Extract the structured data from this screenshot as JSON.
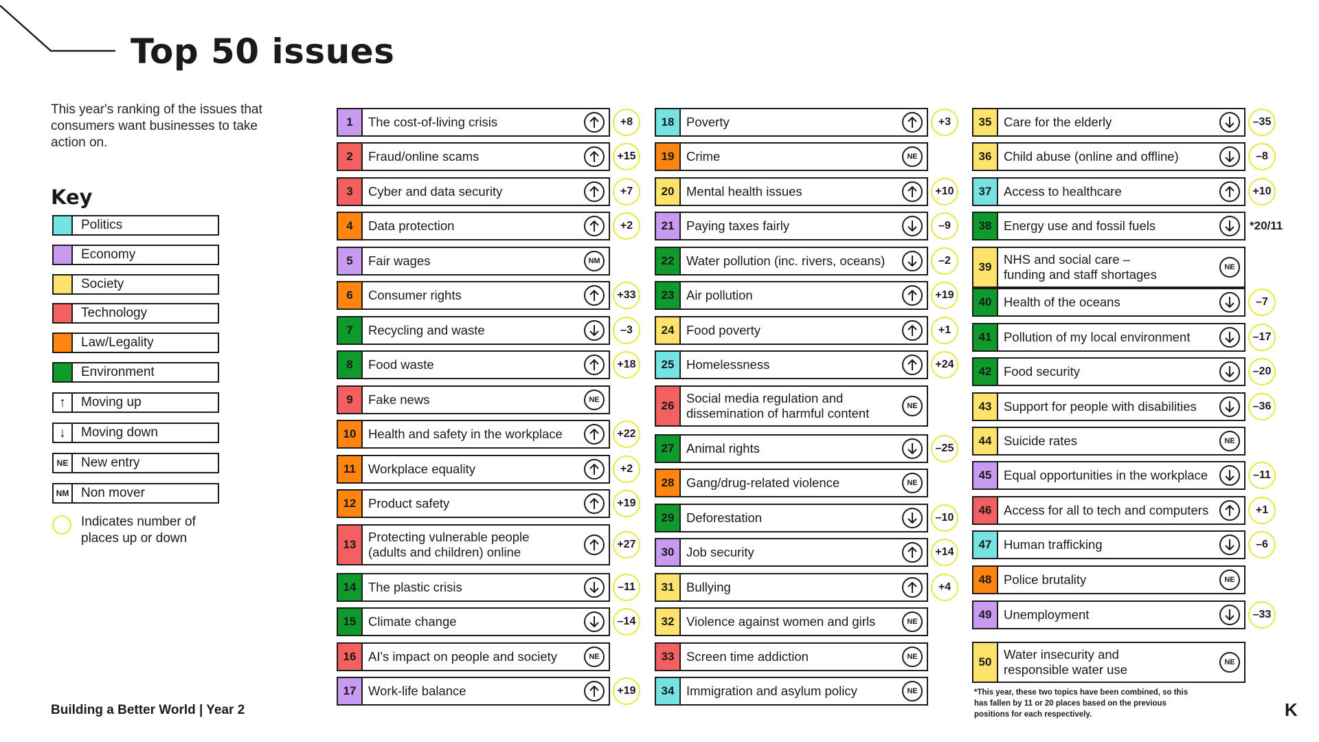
{
  "title": "Top 50 issues",
  "intro": "This year's ranking of the issues that consumers want businesses to take action on.",
  "key": {
    "title": "Key",
    "categories": [
      {
        "label": "Politics",
        "color": "#76e3e3"
      },
      {
        "label": "Economy",
        "color": "#c89af0"
      },
      {
        "label": "Society",
        "color": "#fde26b"
      },
      {
        "label": "Technology",
        "color": "#f46060"
      },
      {
        "label": "Law/Legality",
        "color": "#ff8410"
      },
      {
        "label": "Environment",
        "color": "#0f9a2c"
      }
    ],
    "symbols": [
      {
        "icon": "arrow-up-icon",
        "symbol": "↑",
        "label": "Moving up"
      },
      {
        "icon": "arrow-down-icon",
        "symbol": "↓",
        "label": "Moving down"
      },
      {
        "icon": "new-entry-icon",
        "symbol": "NE",
        "label": "New entry"
      },
      {
        "icon": "non-mover-icon",
        "symbol": "NM",
        "label": "Non mover"
      }
    ],
    "circle_label": "Indicates number of places up or down",
    "circle_color": "#e6ea3c"
  },
  "colors": {
    "Politics": "#76e3e3",
    "Economy": "#c89af0",
    "Society": "#fde26b",
    "Technology": "#f46060",
    "Law": "#ff8410",
    "Environment": "#0f9a2c"
  },
  "issues": [
    {
      "rank": "1",
      "label": "The cost-of-living crisis",
      "category": "Economy",
      "status": "up",
      "change": "+8"
    },
    {
      "rank": "2",
      "label": "Fraud/online scams",
      "category": "Technology",
      "status": "up",
      "change": "+15"
    },
    {
      "rank": "3",
      "label": "Cyber and data security",
      "category": "Technology",
      "status": "up",
      "change": "+7"
    },
    {
      "rank": "4",
      "label": "Data protection",
      "category": "Law",
      "status": "up",
      "change": "+2"
    },
    {
      "rank": "5",
      "label": "Fair wages",
      "category": "Economy",
      "status": "NM",
      "change": ""
    },
    {
      "rank": "6",
      "label": "Consumer rights",
      "category": "Law",
      "status": "up",
      "change": "+33"
    },
    {
      "rank": "7",
      "label": "Recycling and waste",
      "category": "Environment",
      "status": "down",
      "change": "–3"
    },
    {
      "rank": "8",
      "label": "Food waste",
      "category": "Environment",
      "status": "up",
      "change": "+18"
    },
    {
      "rank": "9",
      "label": "Fake news",
      "category": "Technology",
      "status": "NE",
      "change": ""
    },
    {
      "rank": "10",
      "label": "Health and safety in the workplace",
      "category": "Law",
      "status": "up",
      "change": "+22"
    },
    {
      "rank": "11",
      "label": "Workplace equality",
      "category": "Law",
      "status": "up",
      "change": "+2"
    },
    {
      "rank": "12",
      "label": "Product safety",
      "category": "Law",
      "status": "up",
      "change": "+19"
    },
    {
      "rank": "13",
      "label": "Protecting vulnerable people (adults and children) online",
      "label_line1": "Protecting vulnerable people",
      "label_line2": "(adults and children) online",
      "category": "Technology",
      "status": "up",
      "change": "+27"
    },
    {
      "rank": "14",
      "label": "The plastic crisis",
      "category": "Environment",
      "status": "down",
      "change": "–11"
    },
    {
      "rank": "15",
      "label": "Climate change",
      "category": "Environment",
      "status": "down",
      "change": "–14"
    },
    {
      "rank": "16",
      "label": "AI's impact on people and society",
      "category": "Technology",
      "status": "NE",
      "change": ""
    },
    {
      "rank": "17",
      "label": "Work-life balance",
      "category": "Economy",
      "status": "up",
      "change": "+19"
    },
    {
      "rank": "18",
      "label": "Poverty",
      "category": "Politics",
      "status": "up",
      "change": "+3"
    },
    {
      "rank": "19",
      "label": "Crime",
      "category": "Law",
      "status": "NE",
      "change": ""
    },
    {
      "rank": "20",
      "label": "Mental health issues",
      "category": "Society",
      "status": "up",
      "change": "+10"
    },
    {
      "rank": "21",
      "label": "Paying taxes fairly",
      "category": "Economy",
      "status": "down",
      "change": "–9"
    },
    {
      "rank": "22",
      "label": "Water pollution (inc. rivers, oceans)",
      "category": "Environment",
      "status": "down",
      "change": "–2"
    },
    {
      "rank": "23",
      "label": "Air pollution",
      "category": "Environment",
      "status": "up",
      "change": "+19"
    },
    {
      "rank": "24",
      "label": "Food poverty",
      "category": "Society",
      "status": "up",
      "change": "+1"
    },
    {
      "rank": "25",
      "label": "Homelessness",
      "category": "Politics",
      "status": "up",
      "change": "+24"
    },
    {
      "rank": "26",
      "label": "Social media regulation and dissemination of harmful content",
      "label_line1": "Social media regulation and",
      "label_line2": "dissemination of harmful content",
      "category": "Technology",
      "status": "NE",
      "change": ""
    },
    {
      "rank": "27",
      "label": "Animal rights",
      "category": "Environment",
      "status": "down",
      "change": "–25"
    },
    {
      "rank": "28",
      "label": "Gang/drug-related violence",
      "category": "Law",
      "status": "NE",
      "change": ""
    },
    {
      "rank": "29",
      "label": "Deforestation",
      "category": "Environment",
      "status": "down",
      "change": "–10"
    },
    {
      "rank": "30",
      "label": "Job security",
      "category": "Economy",
      "status": "up",
      "change": "+14"
    },
    {
      "rank": "31",
      "label": "Bullying",
      "category": "Society",
      "status": "up",
      "change": "+4"
    },
    {
      "rank": "32",
      "label": "Violence against women and girls",
      "category": "Society",
      "status": "NE",
      "change": ""
    },
    {
      "rank": "33",
      "label": "Screen time addiction",
      "category": "Technology",
      "status": "NE",
      "change": ""
    },
    {
      "rank": "34",
      "label": "Immigration and asylum policy",
      "category": "Politics",
      "status": "NE",
      "change": ""
    },
    {
      "rank": "35",
      "label": "Care for the elderly",
      "category": "Society",
      "status": "down",
      "change": "–35"
    },
    {
      "rank": "36",
      "label": "Child abuse (online and offline)",
      "category": "Society",
      "status": "down",
      "change": "–8"
    },
    {
      "rank": "37",
      "label": "Access to healthcare",
      "category": "Politics",
      "status": "up",
      "change": "+10"
    },
    {
      "rank": "38",
      "label": "Energy use and fossil fuels",
      "category": "Environment",
      "status": "down",
      "change": "",
      "note": "*20/11"
    },
    {
      "rank": "39",
      "label": "NHS and social care – funding and staff shortages",
      "label_line1": "NHS and social care –",
      "label_line2": "funding and staff shortages",
      "category": "Society",
      "status": "NE",
      "change": ""
    },
    {
      "rank": "40",
      "label": "Health of the oceans",
      "category": "Environment",
      "status": "down",
      "change": "–7"
    },
    {
      "rank": "41",
      "label": "Pollution of my local environment",
      "category": "Environment",
      "status": "down",
      "change": "–17"
    },
    {
      "rank": "42",
      "label": "Food security",
      "category": "Environment",
      "status": "down",
      "change": "–20"
    },
    {
      "rank": "43",
      "label": "Support for people with disabilities",
      "category": "Society",
      "status": "down",
      "change": "–36"
    },
    {
      "rank": "44",
      "label": "Suicide rates",
      "category": "Society",
      "status": "NE",
      "change": ""
    },
    {
      "rank": "45",
      "label": "Equal opportunities in the workplace",
      "category": "Economy",
      "status": "down",
      "change": "–11"
    },
    {
      "rank": "46",
      "label": "Access for all to tech and computers",
      "category": "Technology",
      "status": "up",
      "change": "+1"
    },
    {
      "rank": "47",
      "label": "Human trafficking",
      "category": "Politics",
      "status": "down",
      "change": "–6"
    },
    {
      "rank": "48",
      "label": "Police brutality",
      "category": "Law",
      "status": "NE",
      "change": ""
    },
    {
      "rank": "49",
      "label": "Unemployment",
      "category": "Economy",
      "status": "down",
      "change": "–33"
    },
    {
      "rank": "50",
      "label": "Water insecurity and responsible water use",
      "label_line1": "Water insecurity and",
      "label_line2": "responsible water use",
      "category": "Society",
      "status": "NE",
      "change": ""
    }
  ],
  "footnote": "*This year, these two topics have been combined, so this has fallen by 11 or 20 places based on the previous positions for each respectively.",
  "footer": "Building a Better World | Year 2",
  "logo": "K"
}
